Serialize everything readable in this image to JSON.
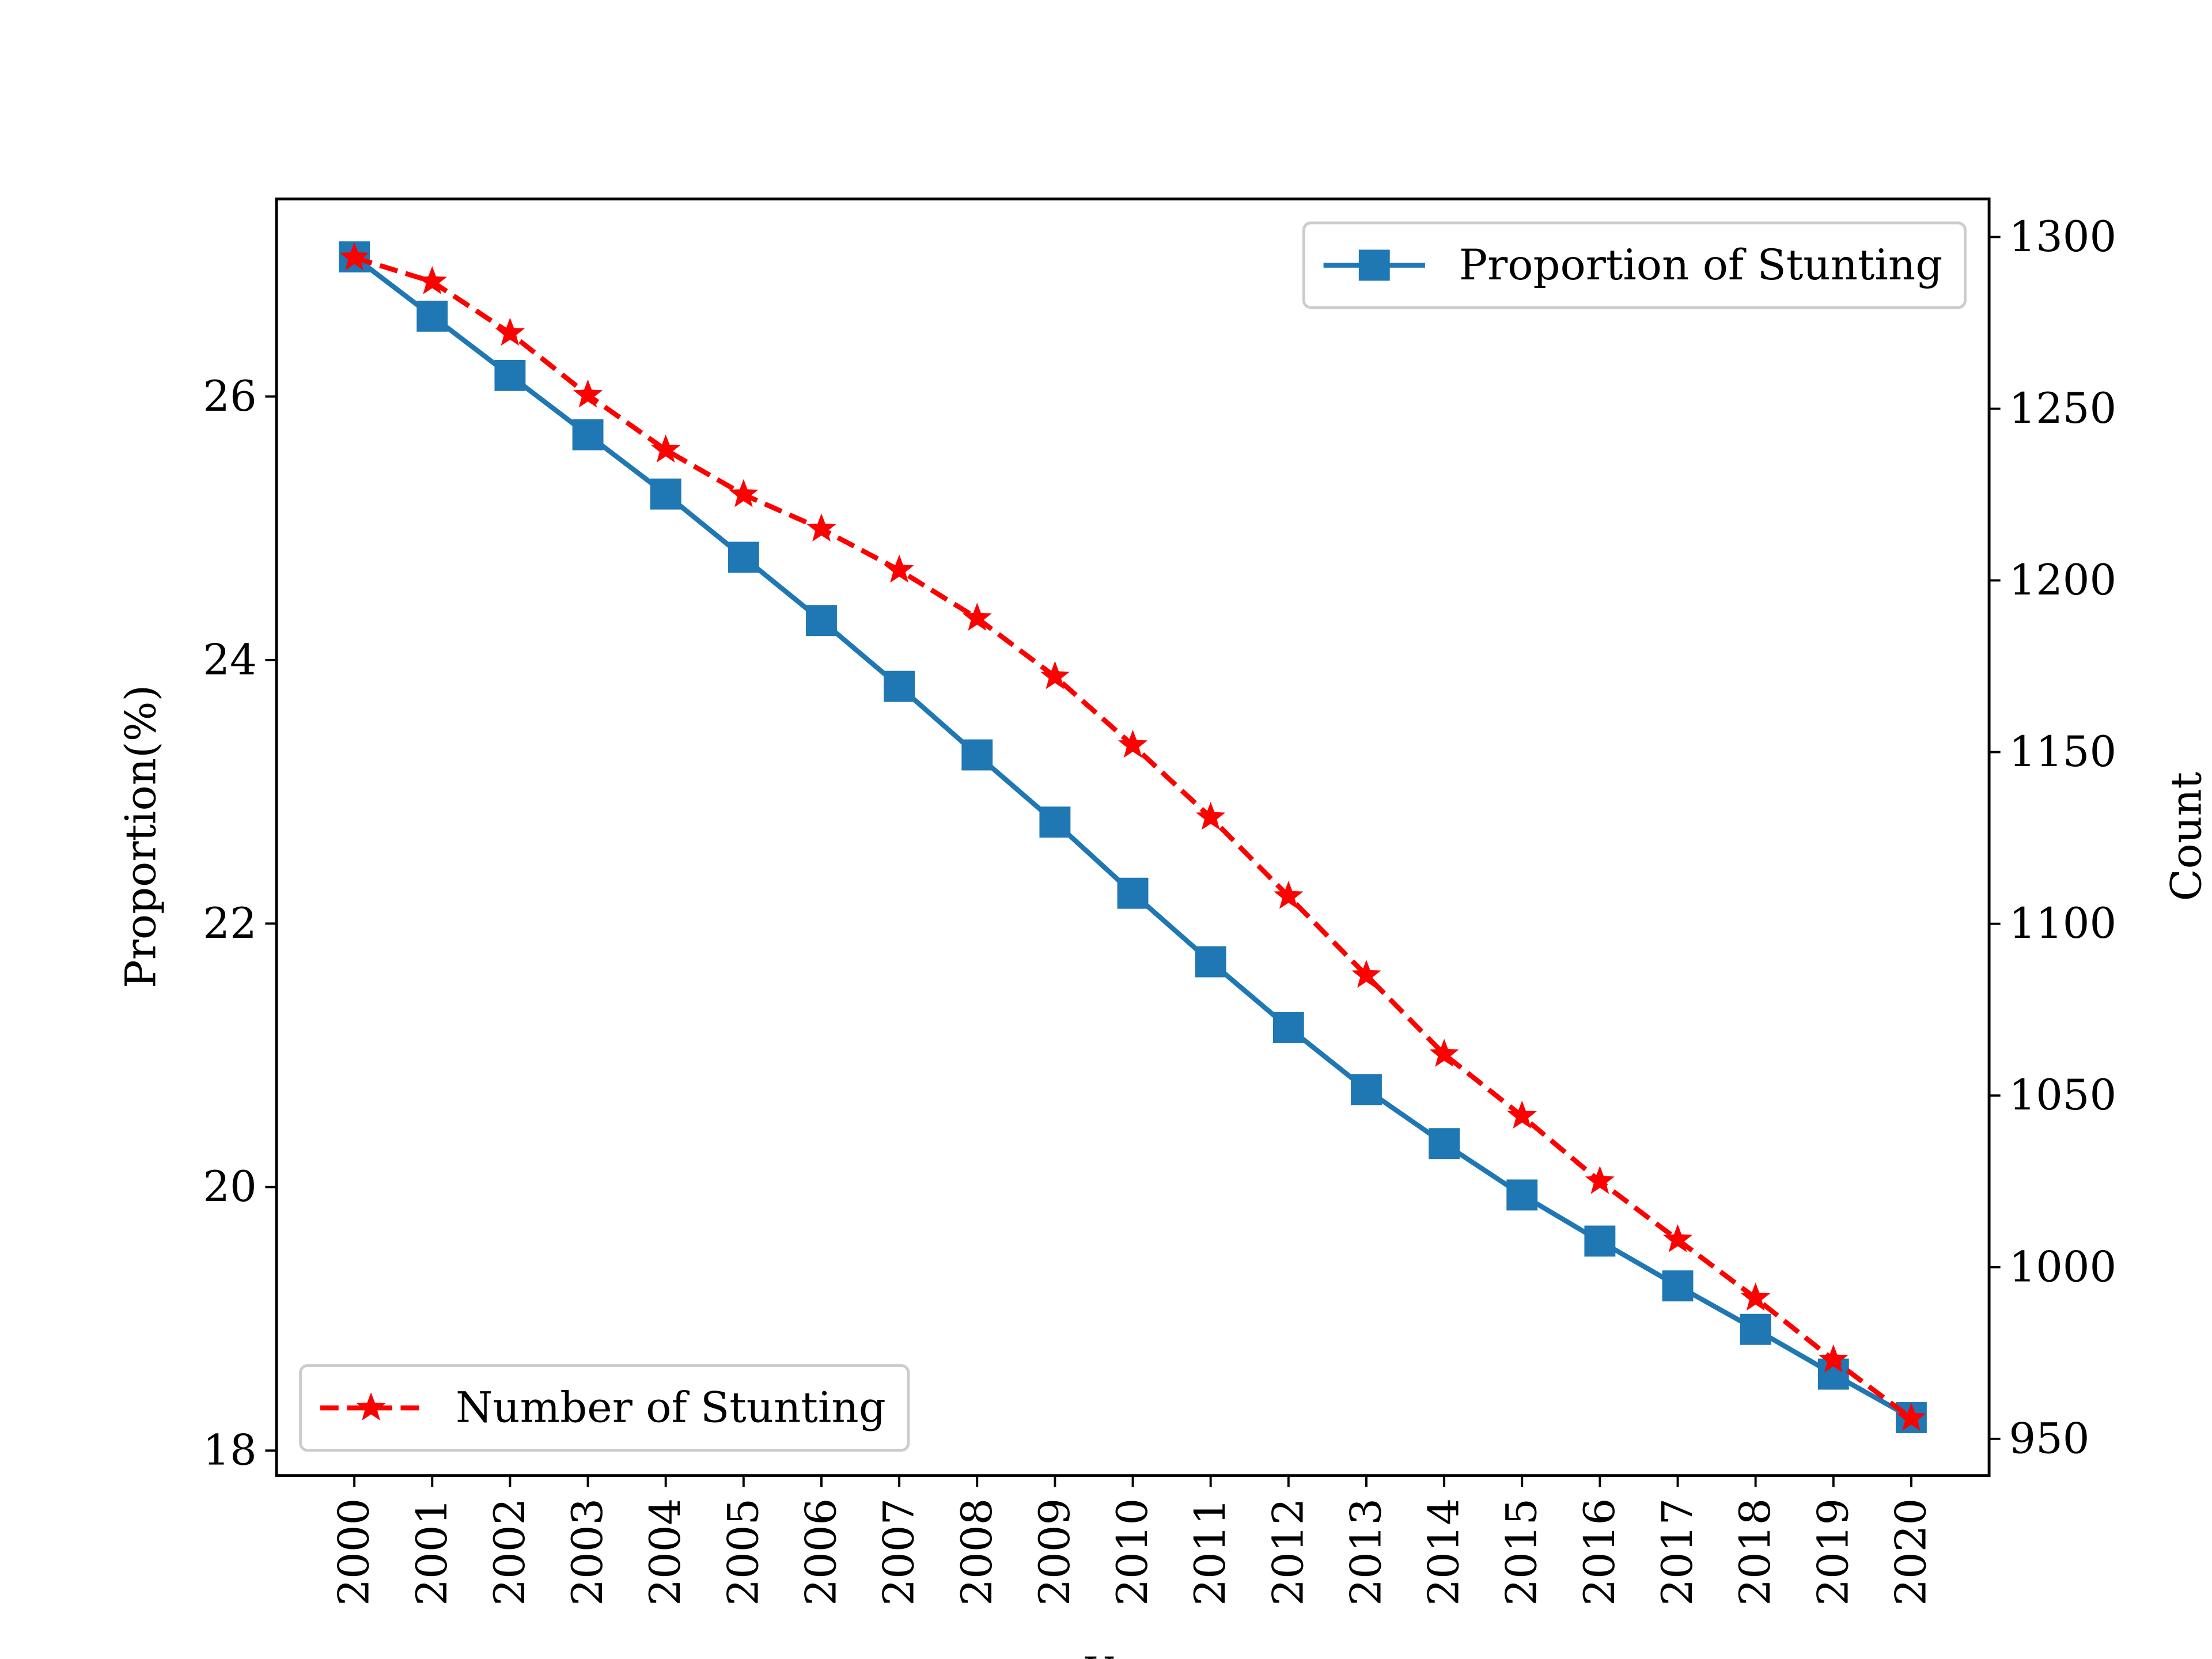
{
  "chart_data": {
    "type": "line",
    "x_label": "Year",
    "y_label": "Proportion(%)",
    "y2_label": "Count",
    "x": [
      2000,
      2001,
      2002,
      2003,
      2004,
      2005,
      2006,
      2007,
      2008,
      2009,
      2010,
      2011,
      2012,
      2013,
      2014,
      2015,
      2016,
      2017,
      2018,
      2019,
      2020
    ],
    "xlim": [
      1999,
      2021
    ],
    "xticks": [
      2000,
      2001,
      2002,
      2003,
      2004,
      2005,
      2006,
      2007,
      2008,
      2009,
      2010,
      2011,
      2012,
      2013,
      2014,
      2015,
      2016,
      2017,
      2018,
      2019,
      2020
    ],
    "ylim": [
      17.81,
      27.5
    ],
    "yticks": [
      18,
      20,
      22,
      24,
      26
    ],
    "y2lim": [
      939.3,
      1311.1
    ],
    "y2ticks": [
      950,
      1000,
      1050,
      1100,
      1150,
      1200,
      1250,
      1300
    ],
    "series": [
      {
        "name": "Proportion of Stunting",
        "color": "#1f77b4",
        "marker": "square",
        "linestyle": "solid",
        "legend": "upper right",
        "values": [
          27.06,
          26.61,
          26.16,
          25.71,
          25.26,
          24.78,
          24.3,
          23.8,
          23.28,
          22.77,
          22.23,
          21.71,
          21.21,
          20.74,
          20.33,
          19.94,
          19.59,
          19.25,
          18.92,
          18.58,
          18.25
        ]
      },
      {
        "name": "Number of Stunting",
        "color": "#ff0000",
        "marker": "star",
        "linestyle": "dashed",
        "legend": "lower left",
        "axis": "y2",
        "values": [
          1294,
          1287,
          1272,
          1254,
          1238,
          1225,
          1215,
          1203,
          1189,
          1172,
          1152,
          1131,
          1108,
          1085,
          1062,
          1044,
          1025,
          1008,
          991,
          973,
          956
        ]
      }
    ]
  }
}
